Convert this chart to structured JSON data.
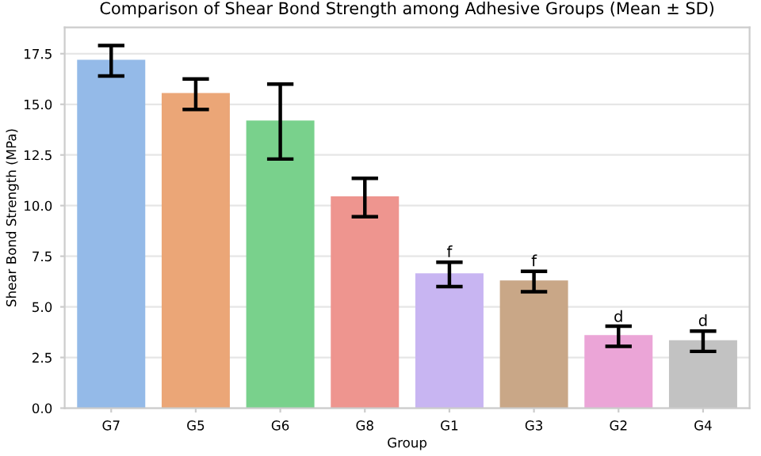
{
  "chart_data": {
    "type": "bar",
    "title": "Comparison of Shear Bond Strength among Adhesive Groups (Mean ± SD)",
    "xlabel": "Group",
    "ylabel": "Shear Bond Strength (MPa)",
    "categories": [
      "G7",
      "G5",
      "G6",
      "G8",
      "G1",
      "G3",
      "G2",
      "G4"
    ],
    "values": [
      17.15,
      15.5,
      14.15,
      10.4,
      6.6,
      6.25,
      3.55,
      3.3
    ],
    "errors": [
      0.75,
      0.75,
      1.85,
      0.95,
      0.6,
      0.5,
      0.5,
      0.5
    ],
    "colors": [
      "#94bae8",
      "#eba677",
      "#79d18c",
      "#ee958f",
      "#c8b5f2",
      "#c9a787",
      "#eba5d7",
      "#c2c2c2"
    ],
    "annotations": [
      {
        "text": "f",
        "x": "G1",
        "y": 7.3
      },
      {
        "text": "f",
        "x": "G3",
        "y": 6.85
      },
      {
        "text": "d",
        "x": "G2",
        "y": 4.1
      },
      {
        "text": "d",
        "x": "G4",
        "y": 3.9
      }
    ],
    "ylim": [
      0,
      18.8
    ],
    "yticks": [
      {
        "value": 0,
        "label": "0.0"
      },
      2.5,
      {
        "value": 5,
        "label": "5.0"
      },
      7.5,
      {
        "value": 10,
        "label": "10.0"
      },
      12.5,
      {
        "value": 15,
        "label": "15.0"
      },
      17.5
    ],
    "grid": "y",
    "legend": false
  }
}
